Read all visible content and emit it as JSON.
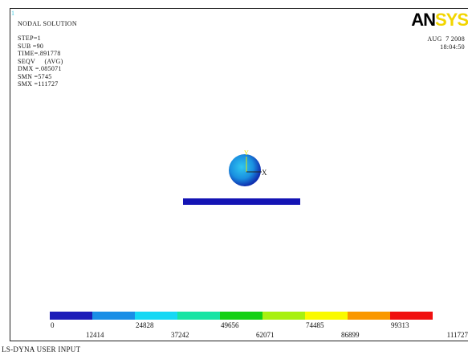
{
  "window_number": "1",
  "info": {
    "title": "NODAL SOLUTION",
    "lines": [
      "STEP=1",
      "SUB =90",
      "TIME=.891778",
      "SEQV     (AVG)",
      "DMX =.085071",
      "SMN =5745",
      "SMX =111727"
    ]
  },
  "logo": {
    "part1": "AN",
    "part2": "SYS"
  },
  "timestamp": {
    "date": "AUG  7 2008",
    "time": "18:04:50"
  },
  "axes": {
    "y": "Y",
    "x": "X"
  },
  "legend": {
    "labels": [
      "0",
      "12414",
      "24828",
      "37242",
      "49656",
      "62071",
      "74485",
      "86899",
      "99313",
      "111727"
    ]
  },
  "footer": "LS-DYNA USER INPUT"
}
